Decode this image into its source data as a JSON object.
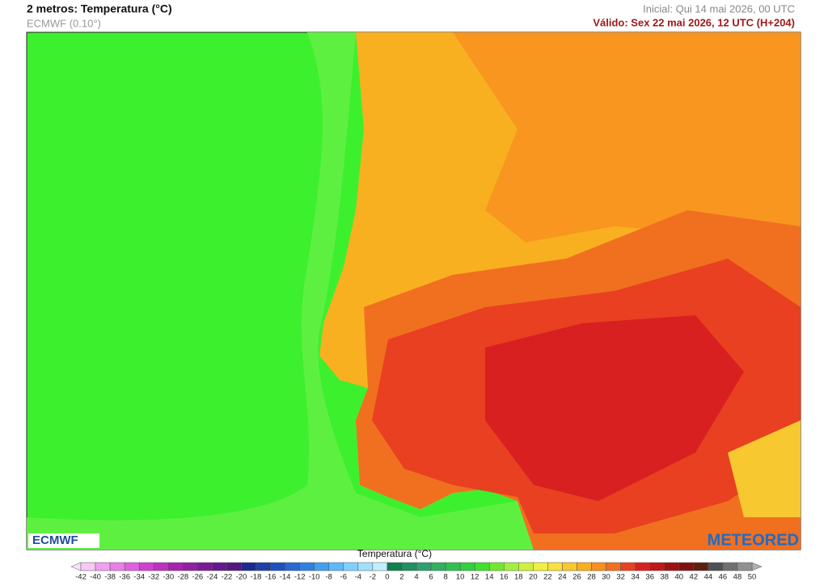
{
  "header": {
    "title": "2 metros: Temperatura (°C)",
    "model": "ECMWF (0.10°)",
    "initial": "Inicial: Qui 14 mai 2026, 00 UTC",
    "valid": "Válido: Sex 22 mai 2026, 12 UTC (H+204)"
  },
  "logos": {
    "left": "ECMWF",
    "right": "METEORED"
  },
  "legend": {
    "title": "Temperatura (°C)",
    "ticks": [
      -42,
      -40,
      -38,
      -36,
      -34,
      -32,
      -30,
      -28,
      -26,
      -24,
      -22,
      -20,
      -18,
      -16,
      -14,
      -12,
      -10,
      -8,
      -6,
      -4,
      -2,
      0,
      2,
      4,
      6,
      8,
      10,
      12,
      14,
      16,
      18,
      20,
      22,
      24,
      26,
      28,
      30,
      32,
      34,
      36,
      38,
      40,
      42,
      44,
      46,
      48,
      50
    ],
    "colors": [
      "#f5c8f5",
      "#f0a0f0",
      "#e880e8",
      "#e060e0",
      "#d040d0",
      "#c030c0",
      "#a820b0",
      "#9020a0",
      "#7a1a98",
      "#641890",
      "#501880",
      "#1a2a90",
      "#1e40a8",
      "#2050c0",
      "#2868d0",
      "#3080e0",
      "#40a0f0",
      "#60b8f8",
      "#80d0ff",
      "#a0e0ff",
      "#c0f0ff",
      "#108050",
      "#209060",
      "#30a070",
      "#30b060",
      "#30c050",
      "#30d040",
      "#40e030",
      "#70e830",
      "#a0f040",
      "#d0f040",
      "#f0f040",
      "#f8e040",
      "#f8c830",
      "#f8b020",
      "#f89020",
      "#f07020",
      "#e84020",
      "#d82020",
      "#c01818",
      "#a01010",
      "#801010",
      "#602010",
      "#505050",
      "#707070",
      "#909090"
    ],
    "under_color": "#fde0fd",
    "over_color": "#b0b0b0"
  }
}
